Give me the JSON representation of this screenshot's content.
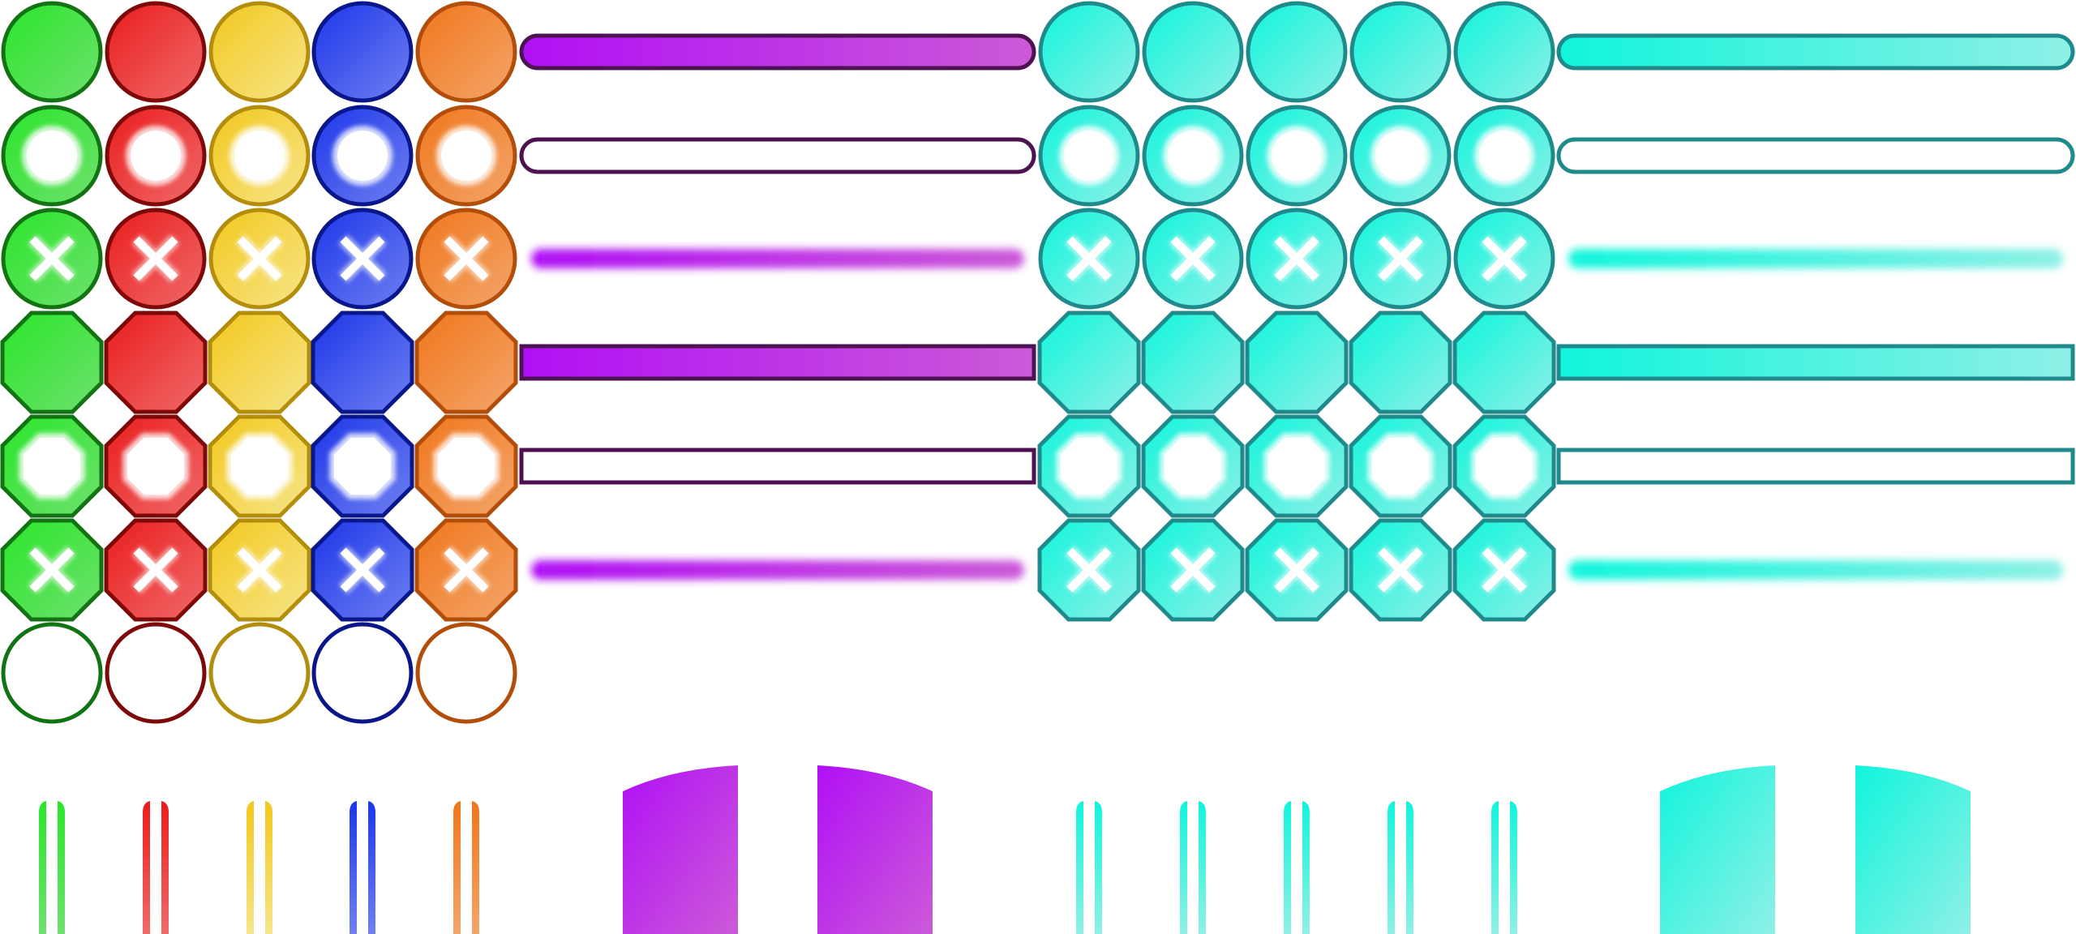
{
  "sprite_sheet": {
    "palettes": [
      {
        "name": "green",
        "light": "#6fe06f",
        "base": "#29e629",
        "edge": "#127312"
      },
      {
        "name": "red",
        "light": "#f06a6a",
        "base": "#ea1c1c",
        "edge": "#7d0909"
      },
      {
        "name": "yellow",
        "light": "#f7e58a",
        "base": "#f2c81c",
        "edge": "#b38e0c"
      },
      {
        "name": "blue",
        "light": "#6f80f0",
        "base": "#1c36ea",
        "edge": "#0a178a"
      },
      {
        "name": "orange",
        "light": "#f3a56a",
        "base": "#f0761c",
        "edge": "#b34e0a"
      }
    ],
    "cyan_palette": {
      "name": "cyan",
      "light": "#8ff0e6",
      "base": "#10f5dc",
      "edge": "#1f8a8c"
    },
    "purple_palette": {
      "name": "purple",
      "light": "#cc5ad8",
      "base": "#b010f5",
      "edge": "#4d1252"
    },
    "button_rows": [
      {
        "shape": "circle",
        "variant": "filled"
      },
      {
        "shape": "circle",
        "variant": "ring"
      },
      {
        "shape": "circle",
        "variant": "cross"
      },
      {
        "shape": "octagon",
        "variant": "filled"
      },
      {
        "shape": "octagon",
        "variant": "ring"
      },
      {
        "shape": "octagon",
        "variant": "cross"
      }
    ],
    "bar_rows": [
      {
        "shape": "rounded",
        "variant": "filled"
      },
      {
        "shape": "rounded",
        "variant": "outline"
      },
      {
        "shape": "rounded",
        "variant": "glow"
      },
      {
        "shape": "square",
        "variant": "filled"
      },
      {
        "shape": "square",
        "variant": "outline"
      },
      {
        "shape": "square",
        "variant": "glow"
      }
    ]
  }
}
